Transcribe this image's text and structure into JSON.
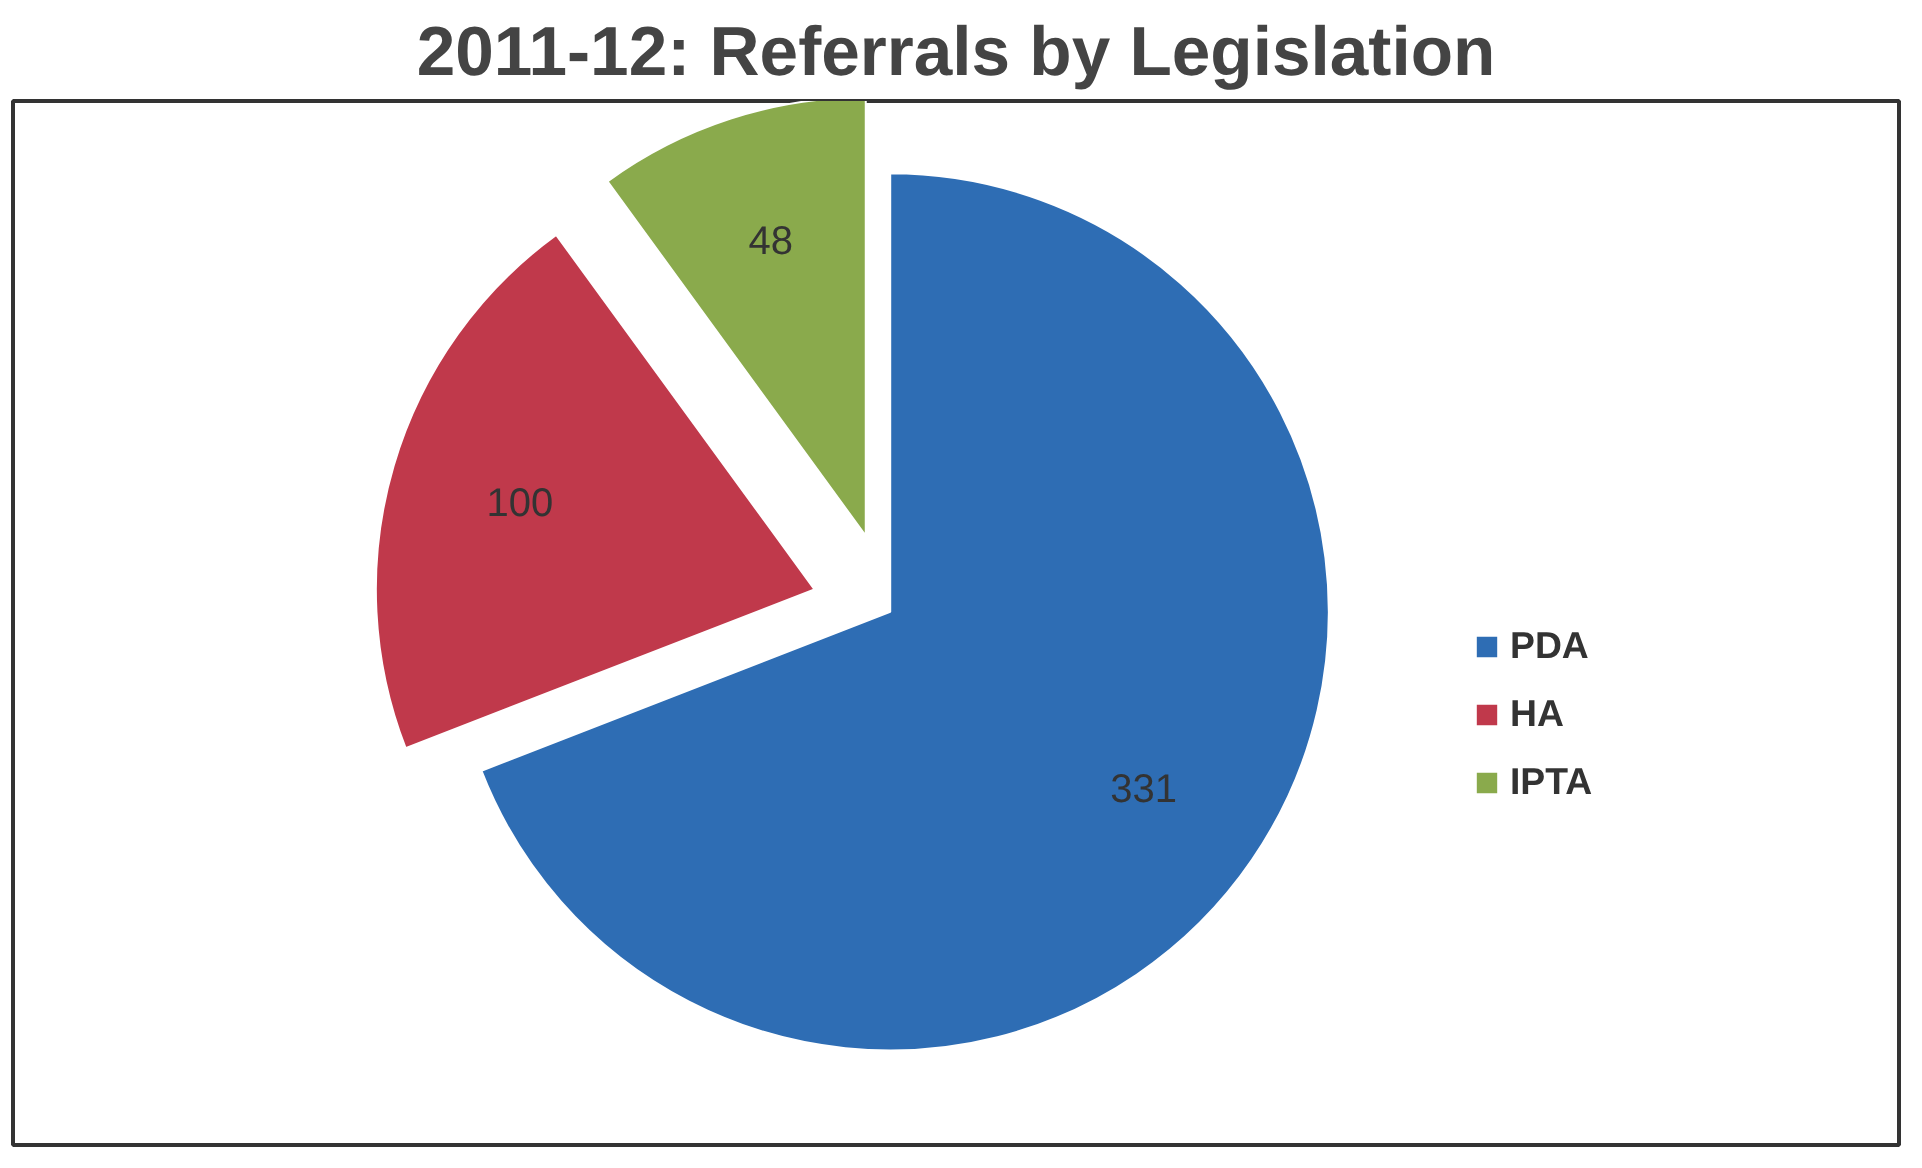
{
  "chart_data": {
    "type": "pie",
    "title": "2011-12: Referrals by Legislation",
    "categories": [
      "PDA",
      "HA",
      "IPTA"
    ],
    "values": [
      331,
      100,
      48
    ],
    "colors": [
      "#2e6db4",
      "#c0394b",
      "#8aaa4c"
    ],
    "data_labels": true,
    "legend": "right"
  }
}
